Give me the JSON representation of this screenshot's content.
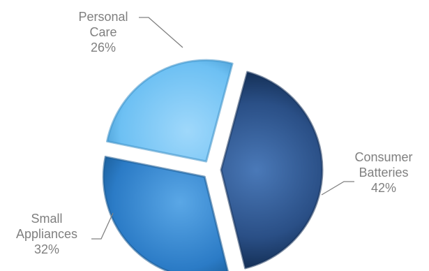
{
  "chart_data": {
    "type": "pie",
    "exploded": true,
    "shading": "3d-bevel",
    "slices": [
      {
        "label_lines": [
          "Consumer",
          "Batteries"
        ],
        "value": 42,
        "percent_label": "42%",
        "color": "#2a4f86",
        "highlight": "#4a79b8",
        "shadow": "#16325a"
      },
      {
        "label_lines": [
          "Small",
          "Appliances"
        ],
        "value": 32,
        "percent_label": "32%",
        "color": "#2b7bc6",
        "highlight": "#5aa7e6",
        "shadow": "#17578f"
      },
      {
        "label_lines": [
          "Personal",
          "Care"
        ],
        "value": 26,
        "percent_label": "26%",
        "color": "#6dc0f3",
        "highlight": "#9fd8fb",
        "shadow": "#3d8fc6"
      }
    ],
    "label_color": "#7f7f7f",
    "leader_line_color": "#808080"
  }
}
